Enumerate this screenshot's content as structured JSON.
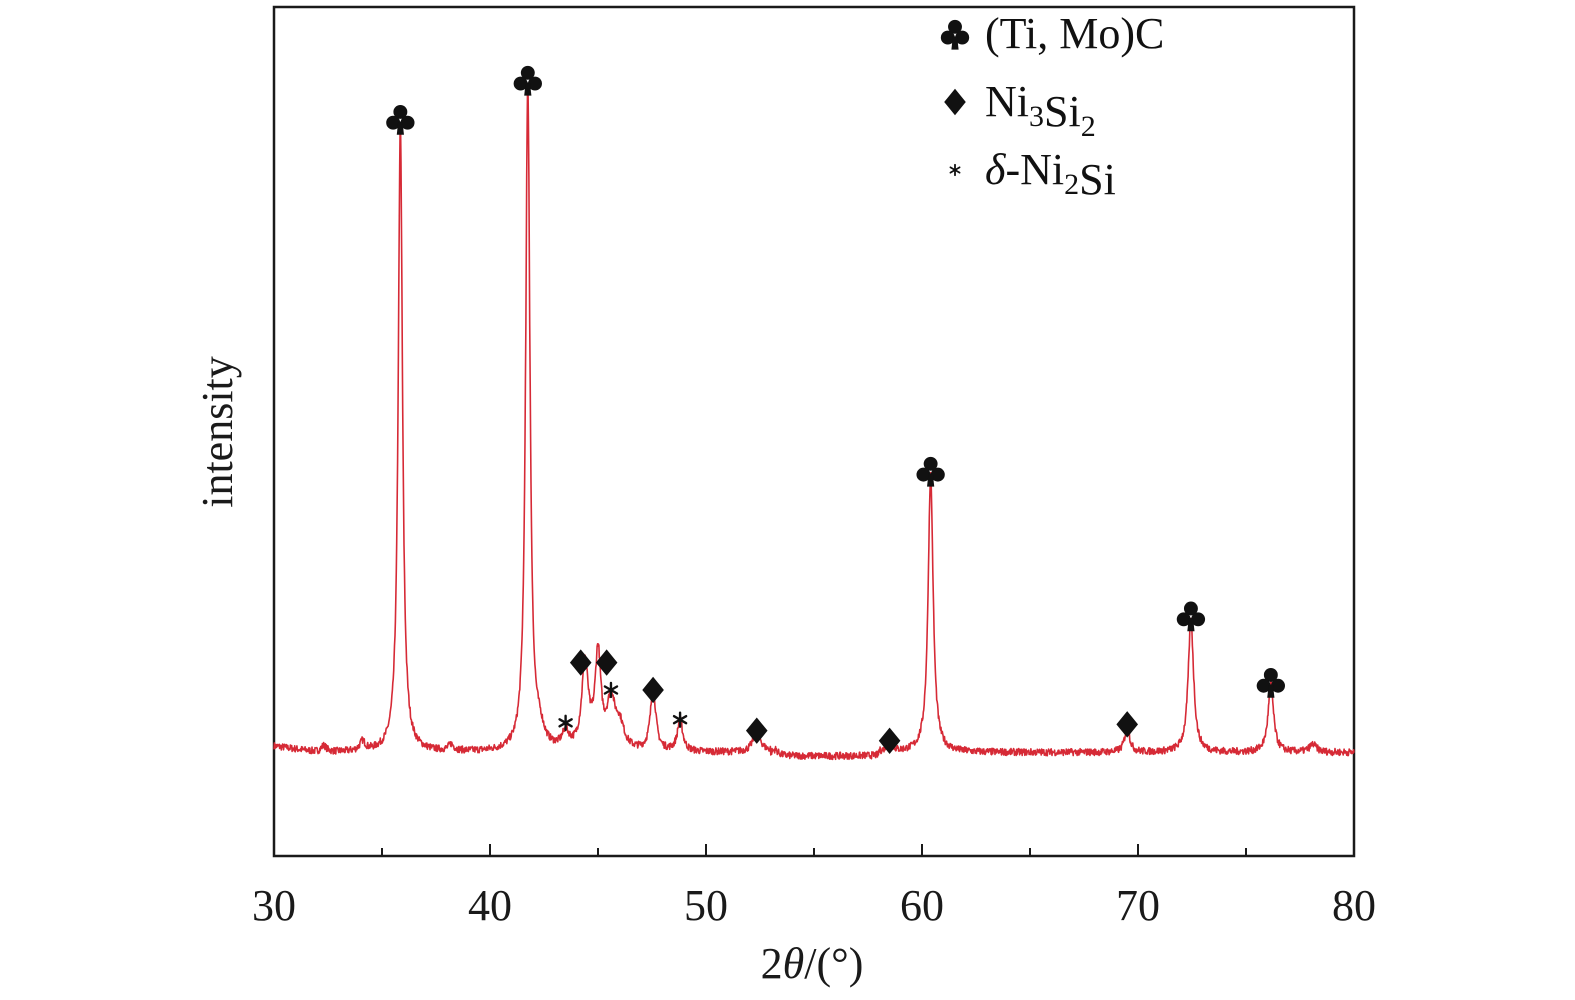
{
  "chart_data": {
    "type": "line",
    "xlabel_prefix": "2",
    "xlabel_symbol": "θ",
    "xlabel_suffix": "/(°)",
    "ylabel": "intensity",
    "xlim": [
      30,
      80
    ],
    "x_ticks": [
      "30",
      "40",
      "50",
      "60",
      "70",
      "80"
    ],
    "grid": false,
    "line_color": "#d62a36",
    "legend_position": "top-right",
    "legend": [
      {
        "symbol": "club",
        "parts": [
          {
            "text": "(Ti, Mo)C"
          }
        ]
      },
      {
        "symbol": "diamond",
        "parts": [
          {
            "text": "Ni"
          },
          {
            "text": "3",
            "sub": true
          },
          {
            "text": "Si"
          },
          {
            "text": "2",
            "sub": true
          }
        ]
      },
      {
        "symbol": "asterisk",
        "parts": [
          {
            "text": "δ",
            "italic": true
          },
          {
            "text": "-Ni"
          },
          {
            "text": "2",
            "sub": true
          },
          {
            "text": "Si"
          }
        ]
      }
    ],
    "series": [
      {
        "baseline": 3,
        "peaks": [
          {
            "x": 32.3,
            "h": 0.8,
            "w": 0.15
          },
          {
            "x": 34.1,
            "h": 1.2,
            "w": 0.15
          },
          {
            "x": 35.85,
            "h": 80,
            "w": 0.12
          },
          {
            "x": 38.2,
            "h": 0.8,
            "w": 0.15
          },
          {
            "x": 41.75,
            "h": 85.5,
            "w": 0.12
          },
          {
            "x": 42.3,
            "h": 2,
            "w": 0.25
          },
          {
            "x": 43.5,
            "h": 2,
            "w": 0.2
          },
          {
            "x": 44.4,
            "h": 11,
            "w": 0.18
          },
          {
            "x": 45.0,
            "h": 12,
            "w": 0.16
          },
          {
            "x": 45.6,
            "h": 6,
            "w": 0.22
          },
          {
            "x": 46.0,
            "h": 3,
            "w": 0.25
          },
          {
            "x": 47.55,
            "h": 8,
            "w": 0.15
          },
          {
            "x": 48.8,
            "h": 4,
            "w": 0.15
          },
          {
            "x": 52.35,
            "h": 2.8,
            "w": 0.2
          },
          {
            "x": 53.2,
            "h": 0.7,
            "w": 0.15
          },
          {
            "x": 58.5,
            "h": 1.3,
            "w": 0.15
          },
          {
            "x": 60.4,
            "h": 35.5,
            "w": 0.14
          },
          {
            "x": 69.5,
            "h": 3.2,
            "w": 0.14
          },
          {
            "x": 72.45,
            "h": 17,
            "w": 0.15
          },
          {
            "x": 76.15,
            "h": 8.7,
            "w": 0.15
          },
          {
            "x": 78.1,
            "h": 1,
            "w": 0.2
          }
        ]
      }
    ],
    "phase_markers": [
      {
        "symbol": "club",
        "x": 35.85,
        "y": 84
      },
      {
        "symbol": "club",
        "x": 41.75,
        "y": 89
      },
      {
        "symbol": "diamond",
        "x": 44.2,
        "y": 14.5
      },
      {
        "symbol": "diamond",
        "x": 45.4,
        "y": 14.5
      },
      {
        "symbol": "diamond",
        "x": 47.55,
        "y": 11
      },
      {
        "symbol": "diamond",
        "x": 52.35,
        "y": 5.8
      },
      {
        "symbol": "diamond",
        "x": 58.5,
        "y": 4.5
      },
      {
        "symbol": "diamond",
        "x": 69.5,
        "y": 6.6
      },
      {
        "symbol": "club",
        "x": 60.4,
        "y": 39
      },
      {
        "symbol": "club",
        "x": 72.45,
        "y": 20.5
      },
      {
        "symbol": "club",
        "x": 76.15,
        "y": 12
      },
      {
        "symbol": "asterisk",
        "x": 43.5,
        "y": 6.8
      },
      {
        "symbol": "asterisk",
        "x": 45.6,
        "y": 11
      },
      {
        "symbol": "asterisk",
        "x": 48.8,
        "y": 7.2
      }
    ]
  }
}
